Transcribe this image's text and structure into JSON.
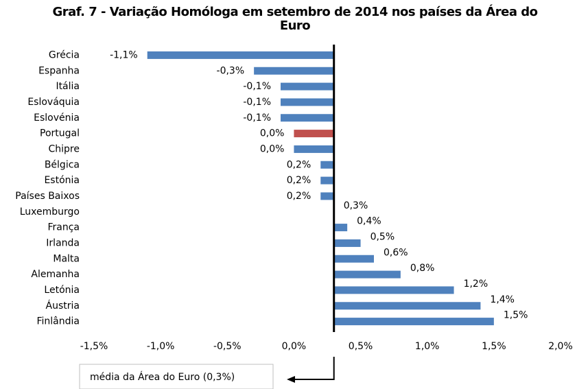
{
  "chart_data": {
    "type": "bar",
    "orientation": "horizontal",
    "title": "Graf. 7 - Variação Homóloga em setembro de 2014 nos países da Área do Euro",
    "categories": [
      "Grécia",
      "Espanha",
      "Itália",
      "Eslováquia",
      "Eslovénia",
      "Portugal",
      "Chipre",
      "Bélgica",
      "Estónia",
      "Países Baixos",
      "Luxemburgo",
      "França",
      "Irlanda",
      "Malta",
      "Alemanha",
      "Letónia",
      "Áustria",
      "Finlândia"
    ],
    "values": [
      -1.1,
      -0.3,
      -0.1,
      -0.1,
      -0.1,
      0.0,
      0.0,
      0.2,
      0.2,
      0.2,
      0.3,
      0.4,
      0.5,
      0.6,
      0.8,
      1.2,
      1.4,
      1.5
    ],
    "value_labels": [
      "-1,1%",
      "-0,3%",
      "-0,1%",
      "-0,1%",
      "-0,1%",
      "0,0%",
      "0,0%",
      "0,2%",
      "0,2%",
      "0,2%",
      "0,3%",
      "0,4%",
      "0,5%",
      "0,6%",
      "0,8%",
      "1,2%",
      "1,4%",
      "1,5%"
    ],
    "colors": [
      "#4f81bd",
      "#4f81bd",
      "#4f81bd",
      "#4f81bd",
      "#4f81bd",
      "#c0504d",
      "#4f81bd",
      "#4f81bd",
      "#4f81bd",
      "#4f81bd",
      "#4f81bd",
      "#4f81bd",
      "#4f81bd",
      "#4f81bd",
      "#4f81bd",
      "#4f81bd",
      "#4f81bd",
      "#4f81bd"
    ],
    "xlim": [
      -1.5,
      2.0
    ],
    "xticks": [
      {
        "value": -1.5,
        "label": "-1,5%"
      },
      {
        "value": -1.0,
        "label": "-1,0%"
      },
      {
        "value": -0.5,
        "label": "-0,5%"
      },
      {
        "value": 0.0,
        "label": "0,0%"
      },
      {
        "value": 0.5,
        "label": "0,5%"
      },
      {
        "value": 1.0,
        "label": "1,0%"
      },
      {
        "value": 1.5,
        "label": "1,5%"
      },
      {
        "value": 2.0,
        "label": "2,0%"
      }
    ],
    "reference": {
      "value": 0.3,
      "label": "média da Área do Euro (0,3%)"
    }
  }
}
